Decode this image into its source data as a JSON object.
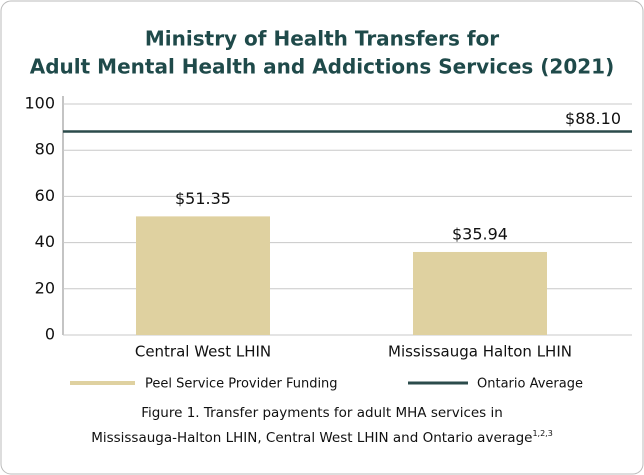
{
  "chart_data": {
    "type": "bar",
    "title": [
      "Ministry of Health Transfers for",
      "Adult Mental Health and Addictions Services (2021)"
    ],
    "categories": [
      "Central West LHIN",
      "Mississauga Halton LHIN"
    ],
    "series": [
      {
        "name": "Peel Service Provider Funding",
        "color": "#dfd1a0",
        "values": [
          51.35,
          35.94
        ],
        "value_labels": [
          "$51.35",
          "$35.94"
        ]
      }
    ],
    "reference_line": {
      "name": "Ontario Average",
      "color": "#2b4b4b",
      "value": 88.1,
      "label": "$88.10"
    },
    "ylim": [
      0,
      100
    ],
    "yticks": [
      0,
      20,
      40,
      60,
      80,
      100
    ],
    "grid": true,
    "caption": [
      "Figure 1. Transfer payments for adult MHA services in",
      "Mississauga-Halton LHIN, Central West LHIN and Ontario average"
    ],
    "caption_superscript": "1,2,3"
  }
}
